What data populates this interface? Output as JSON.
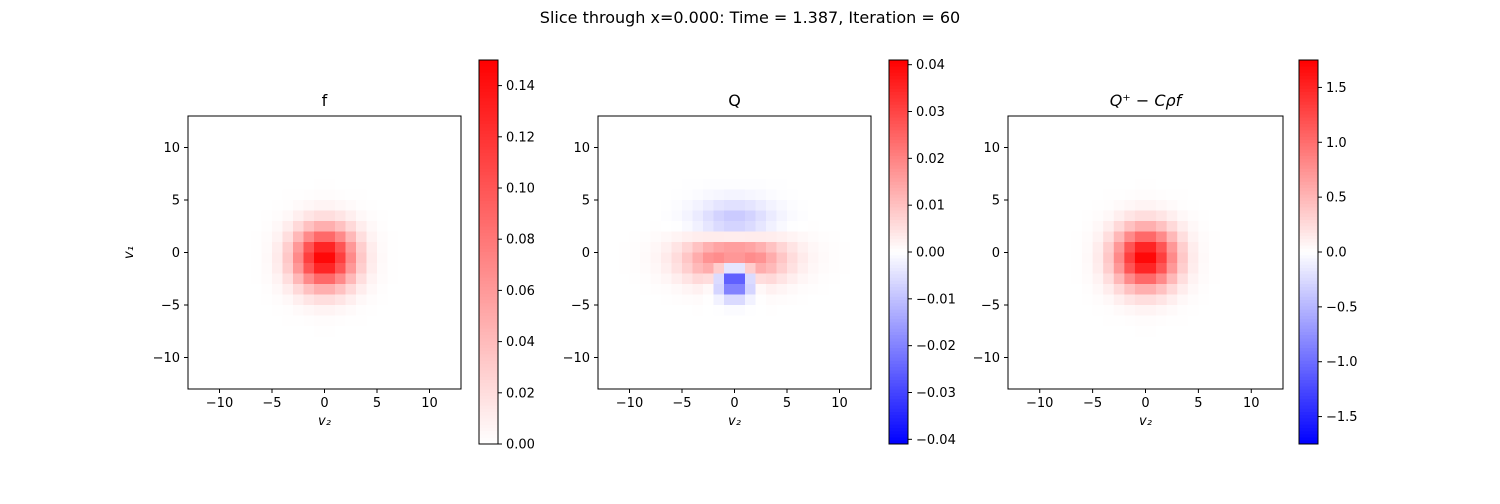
{
  "suptitle": "Slice through x=0.000: Time = 1.387, Iteration = 60",
  "chart_data": [
    {
      "type": "heatmap",
      "title": "f",
      "title_math": false,
      "xlabel": "v₂",
      "ylabel": "v₁",
      "xlim": [
        -13,
        13
      ],
      "ylim": [
        -13,
        13
      ],
      "x_ticks": [
        -10,
        -5,
        0,
        5,
        10
      ],
      "y_ticks": [
        10,
        5,
        0,
        -5,
        -10
      ],
      "grid_cells": 26,
      "field": {
        "kind": "gaussian",
        "amplitude": 0.15,
        "center": [
          0,
          -0.5
        ],
        "sigma": 2.0
      },
      "colormap": "white-red",
      "colorbar": {
        "range": [
          0,
          0.15
        ],
        "ticks": [
          "0.00",
          "0.02",
          "0.04",
          "0.06",
          "0.08",
          "0.10",
          "0.12",
          "0.14"
        ],
        "tick_values": [
          0,
          0.02,
          0.04,
          0.06,
          0.08,
          0.1,
          0.12,
          0.14
        ]
      }
    },
    {
      "type": "heatmap",
      "title": "Q",
      "title_math": false,
      "xlabel": "v₂",
      "ylabel": "",
      "xlim": [
        -13,
        13
      ],
      "ylim": [
        -13,
        13
      ],
      "x_ticks": [
        -10,
        -5,
        0,
        5,
        10
      ],
      "y_ticks": [
        10,
        5,
        0,
        -5,
        -10
      ],
      "grid_cells": 26,
      "field": {
        "kind": "collision",
        "amplitude": 0.041
      },
      "colormap": "blue-white-red",
      "colorbar": {
        "range": [
          -0.041,
          0.041
        ],
        "ticks": [
          "0.04",
          "0.03",
          "0.02",
          "0.01",
          "0.00",
          "−0.01",
          "−0.02",
          "−0.03",
          "−0.04"
        ],
        "tick_values": [
          0.04,
          0.03,
          0.02,
          0.01,
          0,
          -0.01,
          -0.02,
          -0.03,
          -0.04
        ]
      }
    },
    {
      "type": "heatmap",
      "title": "Q⁺ − Cρf",
      "title_math": true,
      "xlabel": "v₂",
      "ylabel": "",
      "xlim": [
        -13,
        13
      ],
      "ylim": [
        -13,
        13
      ],
      "x_ticks": [
        -10,
        -5,
        0,
        5,
        10
      ],
      "y_ticks": [
        10,
        5,
        0,
        -5,
        -10
      ],
      "grid_cells": 26,
      "field": {
        "kind": "gaussian",
        "amplitude": 1.75,
        "center": [
          0,
          -0.5
        ],
        "sigma": 2.0
      },
      "colormap": "blue-white-red",
      "colorbar": {
        "range": [
          -1.75,
          1.75
        ],
        "ticks": [
          "1.5",
          "1.0",
          "0.5",
          "0.0",
          "−0.5",
          "−1.0",
          "−1.5"
        ],
        "tick_values": [
          1.5,
          1.0,
          0.5,
          0.0,
          -0.5,
          -1.0,
          -1.5
        ]
      }
    }
  ],
  "colors": {
    "red": "#ff0000",
    "blue": "#0000ff",
    "white": "#ffffff"
  }
}
